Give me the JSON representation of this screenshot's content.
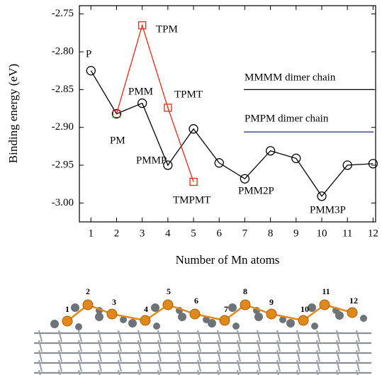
{
  "chart_data": {
    "type": "line",
    "x_label": "Number of Mn atoms",
    "y_label": "Binding energy (eV)",
    "xlim": [
      0.55,
      12.1
    ],
    "ylim": [
      -3.025,
      -2.739
    ],
    "xticks": [
      1,
      2,
      3,
      4,
      5,
      6,
      7,
      8,
      9,
      10,
      11,
      12
    ],
    "yticks": [
      -2.75,
      {
        "value": -2.8,
        "label": "-2.80"
      },
      -2.85,
      {
        "value": -2.9,
        "label": "-2.90"
      },
      -2.95,
      {
        "value": -3.0,
        "label": "-3.00"
      }
    ],
    "series": [
      {
        "color": "#000000",
        "marker": "circle",
        "x": [
          1,
          2,
          3,
          4,
          5,
          6,
          7,
          8,
          9,
          10,
          11,
          12
        ],
        "values": [
          -2.825,
          -2.882,
          -2.868,
          -2.95,
          -2.902,
          -2.947,
          -2.968,
          -2.931,
          -2.941,
          -2.991,
          -2.95,
          -2.948
        ]
      },
      {
        "color": "#e8261c",
        "marker": "square",
        "x": [
          2,
          3,
          4,
          5
        ],
        "values": [
          -2.882,
          -2.765,
          -2.874,
          -2.972
        ]
      }
    ],
    "annotations": [
      "P",
      "PM",
      "PMM",
      "PMMP",
      "PMM2P",
      "PMM3P",
      "TPM",
      "TPMT",
      "TMPMT"
    ],
    "reference_lines": [
      {
        "label": "MMMM dimer chain",
        "value": -2.85,
        "color": "#000000"
      },
      {
        "label": "PMPM dimer chain",
        "value": -2.906,
        "color": "#1f2a78"
      }
    ]
  },
  "structure": {
    "atom_labels": [
      "1",
      "2",
      "3",
      "4",
      "5",
      "6",
      "7",
      "8",
      "9",
      "10",
      "11",
      "12"
    ]
  }
}
